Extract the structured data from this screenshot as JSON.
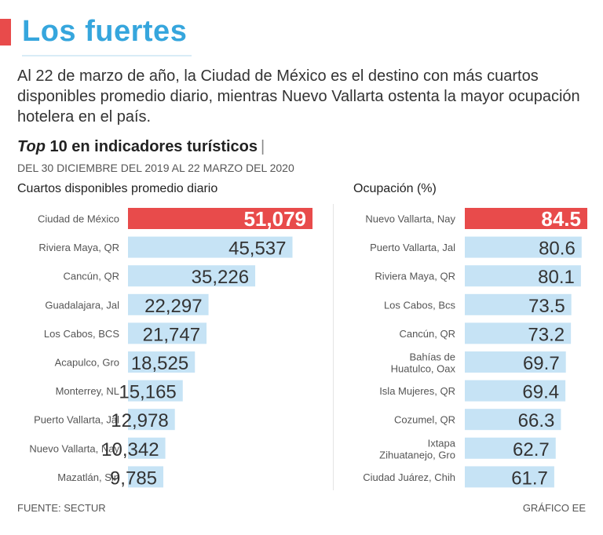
{
  "header": {
    "title": "Los fuertes",
    "intro": "Al 22 de marzo de año, la Ciudad de México es el destino con más cuartos disponibles promedio diario, mientras Nuevo Vallarta ostenta la mayor ocupación hotelera en el país.",
    "subhead_italic": "Top",
    "subhead_rest": " 10 en indicadores turísticos",
    "subhead_pipe": "|",
    "daterange": "DEL 30 DICIEMBRE DEL 2019 AL 22 MARZO DEL 2020"
  },
  "footer": {
    "source": "FUENTE: SECTUR",
    "credit": "GRÁFICO EE"
  },
  "colors": {
    "highlight": "#e84b4b",
    "bar": "#c6e3f5",
    "title": "#36a6dd"
  },
  "chart_data": [
    {
      "type": "bar",
      "orientation": "horizontal",
      "title": "Cuartos disponibles promedio diario",
      "categories": [
        "Ciudad de México",
        "Riviera Maya, QR",
        "Cancún, QR",
        "Guadalajara, Jal",
        "Los Cabos, BCS",
        "Acapulco, Gro",
        "Monterrey, NL",
        "Puerto Vallarta, Jal",
        "Nuevo Vallarta, Nay",
        "Mazatlán, Sin"
      ],
      "values": [
        51079,
        45537,
        35226,
        22297,
        21747,
        18525,
        15165,
        12978,
        10342,
        9785
      ],
      "labels": [
        "51,079",
        "45,537",
        "35,226",
        "22,297",
        "21,747",
        "18,525",
        "15,165",
        "12,978",
        "10,342",
        "9,785"
      ],
      "highlight_index": 0,
      "xlim": [
        0,
        51079
      ]
    },
    {
      "type": "bar",
      "orientation": "horizontal",
      "title": "Ocupación (%)",
      "categories": [
        "Nuevo Vallarta, Nay",
        "Puerto Vallarta, Jal",
        "Riviera Maya, QR",
        "Los Cabos, Bcs",
        "Cancún, QR",
        "Bahías de|Huatulco, Oax",
        "Isla Mujeres, QR",
        "Cozumel, QR",
        "Ixtapa|Zihuatanejo, Gro",
        "Ciudad Juárez, Chih"
      ],
      "values": [
        84.5,
        80.6,
        80.1,
        73.5,
        73.2,
        69.7,
        69.4,
        66.3,
        62.7,
        61.7
      ],
      "labels": [
        "84.5",
        "80.6",
        "80.1",
        "73.5",
        "73.2",
        "69.7",
        "69.4",
        "66.3",
        "62.7",
        "61.7"
      ],
      "highlight_index": 0,
      "xlim": [
        0,
        84.5
      ]
    }
  ]
}
